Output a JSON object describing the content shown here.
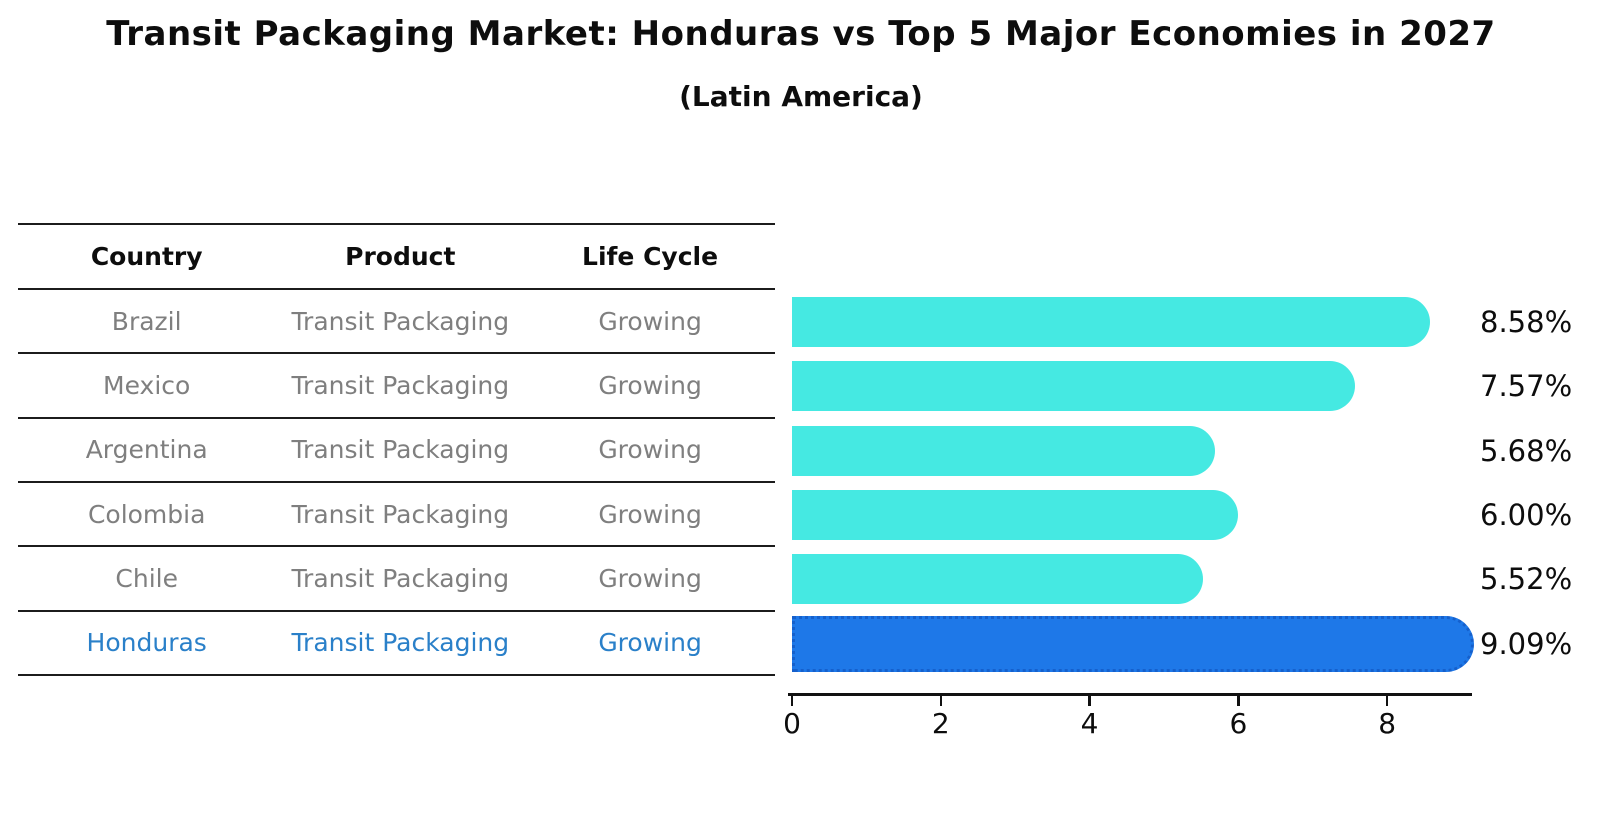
{
  "title": "Transit Packaging Market: Honduras vs Top 5 Major Economies in 2027",
  "subtitle": "(Latin America)",
  "table": {
    "columns": [
      "Country",
      "Product",
      "Life Cycle"
    ],
    "rows": [
      {
        "country": "Brazil",
        "product": "Transit Packaging",
        "life_cycle": "Growing",
        "highlight": false
      },
      {
        "country": "Mexico",
        "product": "Transit Packaging",
        "life_cycle": "Growing",
        "highlight": false
      },
      {
        "country": "Argentina",
        "product": "Transit Packaging",
        "life_cycle": "Growing",
        "highlight": false
      },
      {
        "country": "Colombia",
        "product": "Transit Packaging",
        "life_cycle": "Growing",
        "highlight": false
      },
      {
        "country": "Chile",
        "product": "Transit Packaging",
        "life_cycle": "Growing",
        "highlight": false
      },
      {
        "country": "Honduras",
        "product": "Transit Packaging",
        "life_cycle": "Growing",
        "highlight": true
      }
    ]
  },
  "chart_data": {
    "type": "bar",
    "orientation": "horizontal",
    "title": "Transit Packaging Market: Honduras vs Top 5 Major Economies in 2027",
    "subtitle": "(Latin America)",
    "categories": [
      "Brazil",
      "Mexico",
      "Argentina",
      "Colombia",
      "Chile",
      "Honduras"
    ],
    "values": [
      8.58,
      7.57,
      5.68,
      6.0,
      5.52,
      9.09
    ],
    "value_labels": [
      "8.58%",
      "7.57%",
      "5.68%",
      "6.00%",
      "5.52%",
      "9.09%"
    ],
    "highlight_index": 5,
    "xlabel": "",
    "ylabel": "",
    "xlim": [
      0,
      9.14
    ],
    "xticks": [
      0,
      2,
      4,
      6,
      8
    ],
    "grid": false,
    "legend": "none"
  },
  "colors": {
    "bar": "#45e9e2",
    "highlight_bar": "#1e78e8",
    "highlight_bar_border": "#1560cc",
    "highlight_text": "#2a80c9",
    "table_text": "#7f7f7f",
    "axis": "#111111"
  }
}
